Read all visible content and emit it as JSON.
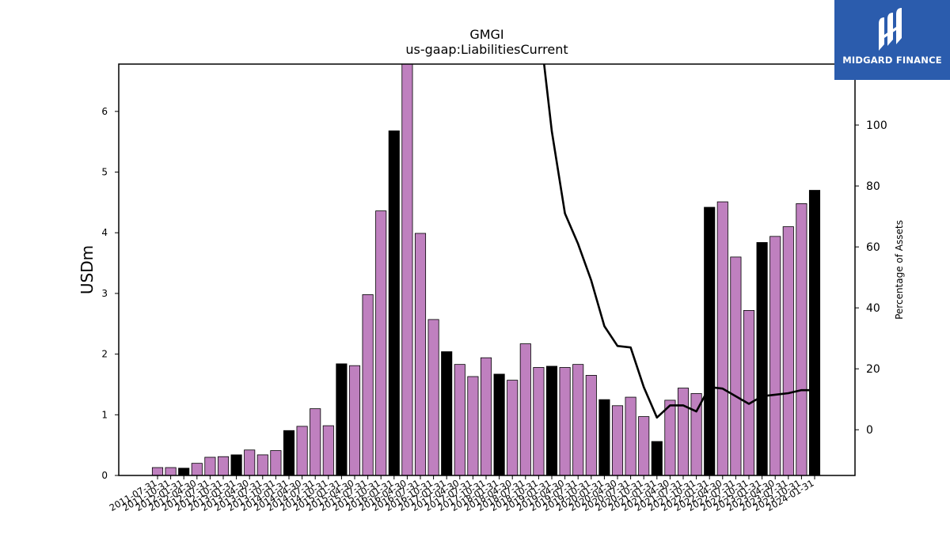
{
  "chart_data": {
    "type": "bar",
    "title": "GMGI",
    "subtitle": "us-gaap:LiabilitiesCurrent",
    "ylabel": "USDm",
    "y2label": "Percentage of Assets",
    "ylim": [
      0,
      6.78
    ],
    "y2lim": [
      -15,
      120
    ],
    "yticks": [
      0,
      1,
      2,
      3,
      4,
      5,
      6
    ],
    "y2ticks": [
      0,
      20,
      40,
      60,
      80,
      100
    ],
    "colors": {
      "quarter": "#bf80bf",
      "annual": "#000000",
      "line": "#000000"
    },
    "categories": [
      "2011-07-31",
      "2011-10-31",
      "2012-01-31",
      "2012-04-30",
      "2012-07-31",
      "2012-10-31",
      "2013-01-31",
      "2013-04-30",
      "2013-07-31",
      "2013-10-31",
      "2014-01-31",
      "2014-04-30",
      "2014-07-31",
      "2014-10-31",
      "2015-01-31",
      "2015-04-30",
      "2015-07-31",
      "2015-10-31",
      "2016-01-31",
      "2016-04-30",
      "2016-07-31",
      "2016-10-31",
      "2017-01-31",
      "2017-04-30",
      "2017-07-31",
      "2017-10-31",
      "2018-01-31",
      "2018-04-30",
      "2018-07-31",
      "2018-10-31",
      "2019-01-31",
      "2019-04-30",
      "2019-07-31",
      "2019-10-31",
      "2020-01-31",
      "2020-04-30",
      "2020-07-31",
      "2020-10-31",
      "2021-01-31",
      "2021-04-30",
      "2021-07-31",
      "2021-10-31",
      "2022-01-31",
      "2022-04-30",
      "2022-07-31",
      "2022-10-31",
      "2023-01-31",
      "2023-04-30",
      "2023-07-31",
      "2023-10-31",
      "2024-01-31"
    ],
    "values": [
      0.13,
      0.13,
      0.12,
      0.2,
      0.3,
      0.31,
      0.34,
      0.42,
      0.34,
      0.41,
      0.74,
      0.81,
      1.1,
      0.82,
      1.84,
      1.81,
      2.98,
      4.36,
      5.68,
      6.78,
      3.99,
      2.57,
      2.04,
      1.83,
      1.63,
      1.94,
      1.67,
      1.57,
      2.17,
      1.78,
      1.8,
      1.78,
      1.83,
      1.65,
      1.25,
      1.15,
      1.29,
      0.97,
      0.56,
      1.24,
      1.44,
      1.35,
      4.42,
      4.51,
      3.6,
      2.72,
      3.84,
      3.94,
      4.1,
      4.48,
      4.7
    ],
    "annual": [
      false,
      false,
      true,
      false,
      false,
      false,
      true,
      false,
      false,
      false,
      true,
      false,
      false,
      false,
      true,
      false,
      false,
      false,
      true,
      false,
      false,
      false,
      true,
      false,
      false,
      false,
      true,
      false,
      false,
      false,
      true,
      false,
      false,
      false,
      true,
      false,
      false,
      false,
      true,
      false,
      false,
      false,
      true,
      false,
      false,
      false,
      true,
      false,
      false,
      false,
      true
    ],
    "pct_of_assets": [
      null,
      null,
      null,
      null,
      null,
      null,
      null,
      null,
      null,
      null,
      null,
      null,
      null,
      null,
      null,
      null,
      null,
      null,
      null,
      null,
      null,
      null,
      null,
      null,
      null,
      null,
      null,
      null,
      null,
      null,
      98,
      71,
      61,
      49,
      34,
      27.5,
      27,
      14,
      4,
      8,
      8,
      6,
      14,
      13.5,
      11,
      8.5,
      11,
      11.5,
      12,
      13,
      13
    ]
  },
  "logo": {
    "text": "MIDGARD FINANCE"
  }
}
